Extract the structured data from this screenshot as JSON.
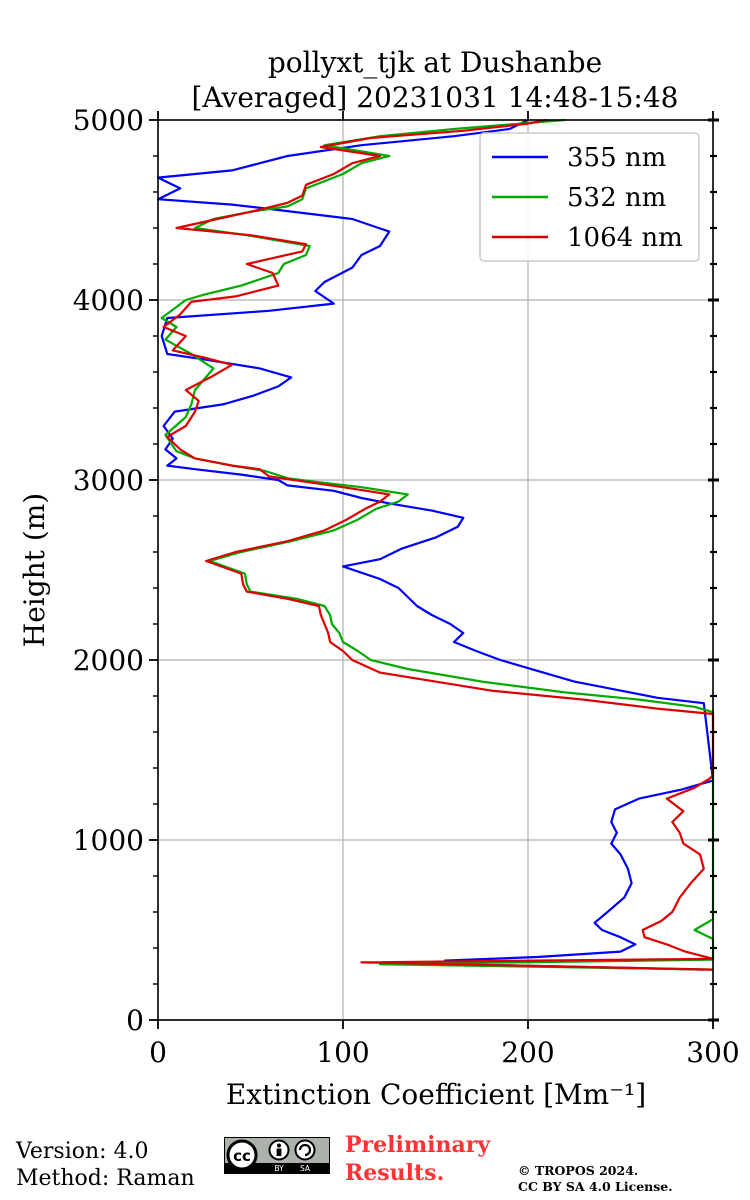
{
  "chart_data": {
    "type": "line",
    "title_line1": "pollyxt_tjk at Dushanbe",
    "title_line2": "[Averaged] 20231031 14:48-15:48",
    "xlabel": "Extinction Coefficient [Mm⁻¹]",
    "ylabel": "Height (m)",
    "xlim": [
      0,
      300
    ],
    "ylim": [
      0,
      5000
    ],
    "xticks": [
      "0",
      "100",
      "200",
      "300"
    ],
    "yticks": [
      "0",
      "1000",
      "2000",
      "3000",
      "4000",
      "5000"
    ],
    "grid": true,
    "legend_position": "top-right",
    "series": [
      {
        "name": "355 nm",
        "color": "#0000ff",
        "points": [
          [
            295,
            280
          ],
          [
            160,
            310
          ],
          [
            155,
            330
          ],
          [
            205,
            350
          ],
          [
            250,
            380
          ],
          [
            258,
            420
          ],
          [
            250,
            460
          ],
          [
            240,
            500
          ],
          [
            236,
            540
          ],
          [
            243,
            600
          ],
          [
            252,
            680
          ],
          [
            256,
            760
          ],
          [
            254,
            840
          ],
          [
            250,
            920
          ],
          [
            245,
            980
          ],
          [
            248,
            1040
          ],
          [
            245,
            1100
          ],
          [
            247,
            1170
          ],
          [
            260,
            1230
          ],
          [
            283,
            1280
          ],
          [
            293,
            1310
          ],
          [
            300,
            1330
          ],
          [
            295,
            1760
          ],
          [
            270,
            1790
          ],
          [
            250,
            1830
          ],
          [
            225,
            1880
          ],
          [
            205,
            1940
          ],
          [
            185,
            2000
          ],
          [
            172,
            2050
          ],
          [
            160,
            2100
          ],
          [
            165,
            2150
          ],
          [
            158,
            2200
          ],
          [
            148,
            2250
          ],
          [
            140,
            2300
          ],
          [
            135,
            2350
          ],
          [
            130,
            2400
          ],
          [
            120,
            2450
          ],
          [
            100,
            2520
          ],
          [
            120,
            2560
          ],
          [
            132,
            2620
          ],
          [
            150,
            2680
          ],
          [
            162,
            2740
          ],
          [
            165,
            2790
          ],
          [
            148,
            2830
          ],
          [
            125,
            2870
          ],
          [
            110,
            2900
          ],
          [
            95,
            2940
          ],
          [
            70,
            2970
          ],
          [
            65,
            3000
          ],
          [
            45,
            3030
          ],
          [
            20,
            3060
          ],
          [
            5,
            3080
          ],
          [
            10,
            3120
          ],
          [
            4,
            3170
          ],
          [
            8,
            3230
          ],
          [
            3,
            3300
          ],
          [
            9,
            3380
          ],
          [
            35,
            3420
          ],
          [
            52,
            3470
          ],
          [
            65,
            3520
          ],
          [
            72,
            3570
          ],
          [
            55,
            3620
          ],
          [
            25,
            3670
          ],
          [
            5,
            3700
          ],
          [
            2,
            3800
          ],
          [
            5,
            3900
          ],
          [
            60,
            3940
          ],
          [
            95,
            3980
          ],
          [
            85,
            4050
          ],
          [
            90,
            4100
          ],
          [
            105,
            4180
          ],
          [
            110,
            4250
          ],
          [
            120,
            4300
          ],
          [
            125,
            4380
          ],
          [
            105,
            4450
          ],
          [
            65,
            4500
          ],
          [
            40,
            4530
          ],
          [
            0,
            4560
          ],
          [
            12,
            4620
          ],
          [
            0,
            4680
          ],
          [
            40,
            4720
          ],
          [
            55,
            4760
          ],
          [
            70,
            4800
          ],
          [
            110,
            4860
          ],
          [
            160,
            4910
          ],
          [
            190,
            4950
          ],
          [
            200,
            5000
          ]
        ]
      },
      {
        "name": "532 nm",
        "color": "#00aa00",
        "points": [
          [
            300,
            280
          ],
          [
            120,
            310
          ],
          [
            300,
            335
          ],
          [
            300,
            380
          ],
          [
            300,
            450
          ],
          [
            290,
            500
          ],
          [
            300,
            560
          ],
          [
            300,
            600
          ],
          [
            300,
            1710
          ],
          [
            290,
            1740
          ],
          [
            260,
            1780
          ],
          [
            220,
            1820
          ],
          [
            175,
            1880
          ],
          [
            135,
            1950
          ],
          [
            115,
            2000
          ],
          [
            108,
            2050
          ],
          [
            100,
            2100
          ],
          [
            98,
            2150
          ],
          [
            94,
            2200
          ],
          [
            93,
            2250
          ],
          [
            90,
            2300
          ],
          [
            75,
            2340
          ],
          [
            50,
            2380
          ],
          [
            48,
            2420
          ],
          [
            47,
            2480
          ],
          [
            28,
            2550
          ],
          [
            45,
            2600
          ],
          [
            72,
            2660
          ],
          [
            95,
            2720
          ],
          [
            108,
            2780
          ],
          [
            118,
            2840
          ],
          [
            130,
            2880
          ],
          [
            135,
            2920
          ],
          [
            110,
            2960
          ],
          [
            85,
            2990
          ],
          [
            70,
            3010
          ],
          [
            58,
            3050
          ],
          [
            40,
            3080
          ],
          [
            20,
            3120
          ],
          [
            10,
            3160
          ],
          [
            4,
            3250
          ],
          [
            15,
            3350
          ],
          [
            18,
            3420
          ],
          [
            20,
            3500
          ],
          [
            30,
            3620
          ],
          [
            18,
            3700
          ],
          [
            4,
            3780
          ],
          [
            10,
            3850
          ],
          [
            2,
            3900
          ],
          [
            15,
            4000
          ],
          [
            25,
            4030
          ],
          [
            45,
            4080
          ],
          [
            65,
            4150
          ],
          [
            68,
            4200
          ],
          [
            80,
            4250
          ],
          [
            82,
            4300
          ],
          [
            48,
            4360
          ],
          [
            20,
            4400
          ],
          [
            30,
            4450
          ],
          [
            50,
            4490
          ],
          [
            70,
            4520
          ],
          [
            78,
            4560
          ],
          [
            80,
            4620
          ],
          [
            100,
            4700
          ],
          [
            110,
            4760
          ],
          [
            125,
            4800
          ],
          [
            90,
            4860
          ],
          [
            120,
            4910
          ],
          [
            160,
            4950
          ],
          [
            220,
            5000
          ]
        ]
      },
      {
        "name": "1064 nm",
        "color": "#dd0000",
        "points": [
          [
            300,
            280
          ],
          [
            110,
            320
          ],
          [
            300,
            340
          ],
          [
            285,
            380
          ],
          [
            275,
            420
          ],
          [
            263,
            460
          ],
          [
            262,
            500
          ],
          [
            272,
            550
          ],
          [
            278,
            600
          ],
          [
            282,
            680
          ],
          [
            288,
            760
          ],
          [
            295,
            840
          ],
          [
            293,
            920
          ],
          [
            284,
            980
          ],
          [
            282,
            1040
          ],
          [
            278,
            1100
          ],
          [
            284,
            1160
          ],
          [
            275,
            1230
          ],
          [
            290,
            1290
          ],
          [
            298,
            1340
          ],
          [
            300,
            1360
          ],
          [
            300,
            1700
          ],
          [
            270,
            1730
          ],
          [
            230,
            1780
          ],
          [
            180,
            1830
          ],
          [
            150,
            1880
          ],
          [
            120,
            1930
          ],
          [
            105,
            2000
          ],
          [
            100,
            2050
          ],
          [
            93,
            2100
          ],
          [
            92,
            2150
          ],
          [
            90,
            2200
          ],
          [
            88,
            2250
          ],
          [
            87,
            2300
          ],
          [
            70,
            2340
          ],
          [
            48,
            2380
          ],
          [
            46,
            2420
          ],
          [
            45,
            2480
          ],
          [
            26,
            2550
          ],
          [
            42,
            2600
          ],
          [
            70,
            2660
          ],
          [
            90,
            2720
          ],
          [
            102,
            2780
          ],
          [
            112,
            2840
          ],
          [
            120,
            2880
          ],
          [
            125,
            2920
          ],
          [
            100,
            2960
          ],
          [
            80,
            2990
          ],
          [
            60,
            3020
          ],
          [
            55,
            3060
          ],
          [
            40,
            3080
          ],
          [
            20,
            3120
          ],
          [
            12,
            3170
          ],
          [
            5,
            3240
          ],
          [
            15,
            3300
          ],
          [
            20,
            3380
          ],
          [
            22,
            3440
          ],
          [
            15,
            3500
          ],
          [
            30,
            3580
          ],
          [
            40,
            3640
          ],
          [
            25,
            3680
          ],
          [
            8,
            3720
          ],
          [
            15,
            3800
          ],
          [
            3,
            3850
          ],
          [
            12,
            3920
          ],
          [
            18,
            3990
          ],
          [
            42,
            4020
          ],
          [
            65,
            4080
          ],
          [
            62,
            4150
          ],
          [
            48,
            4200
          ],
          [
            78,
            4270
          ],
          [
            80,
            4310
          ],
          [
            50,
            4360
          ],
          [
            10,
            4400
          ],
          [
            32,
            4450
          ],
          [
            50,
            4490
          ],
          [
            70,
            4540
          ],
          [
            78,
            4580
          ],
          [
            80,
            4640
          ],
          [
            95,
            4700
          ],
          [
            105,
            4760
          ],
          [
            120,
            4800
          ],
          [
            88,
            4850
          ],
          [
            115,
            4900
          ],
          [
            165,
            4940
          ],
          [
            200,
            4980
          ],
          [
            210,
            5000
          ]
        ]
      }
    ]
  },
  "footer": {
    "version": "Version: 4.0",
    "method": "Method: Raman",
    "cc_label": "cc",
    "cc_by": "BY",
    "cc_sa": "SA",
    "preliminary_line1": "Preliminary",
    "preliminary_line2": "Results.",
    "copyright_line1": "© TROPOS 2024.",
    "copyright_line2": "CC BY SA 4.0 License."
  }
}
